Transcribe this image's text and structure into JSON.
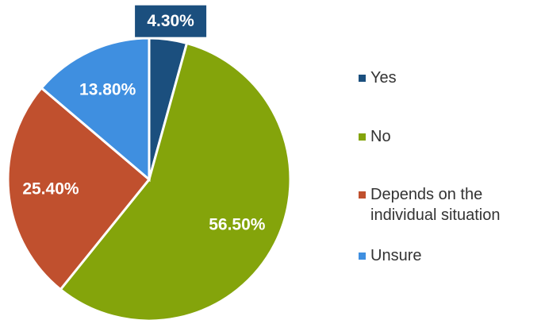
{
  "chart_data": {
    "type": "pie",
    "categories": [
      "Yes",
      "No",
      "Depends on the individual situation",
      "Unsure"
    ],
    "values": [
      4.3,
      56.5,
      25.4,
      13.8
    ],
    "value_labels": [
      "4.30%",
      "56.50%",
      "25.40%",
      "13.80%"
    ],
    "colors": [
      "#1b4f7e",
      "#84a40b",
      "#c0502e",
      "#3f8fe0"
    ],
    "legend": "right"
  }
}
